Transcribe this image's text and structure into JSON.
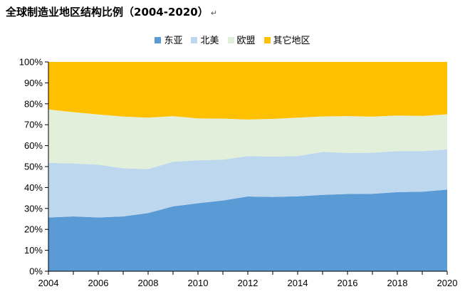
{
  "title": "全球制造业地区结构比例（2004-2020）",
  "title_mark": "↵",
  "colors": {
    "east_asia": "#5b9bd5",
    "north_america": "#bdd7ee",
    "eu": "#e2efda",
    "other": "#ffc000"
  },
  "chart_data": {
    "type": "area",
    "stacked": true,
    "title": "全球制造业地区结构比例（2004-2020）",
    "xlabel": "",
    "ylabel": "",
    "x": [
      2004,
      2005,
      2006,
      2007,
      2008,
      2009,
      2010,
      2011,
      2012,
      2013,
      2014,
      2015,
      2016,
      2017,
      2018,
      2019,
      2020
    ],
    "x_ticks": [
      "2004",
      "2006",
      "2008",
      "2010",
      "2012",
      "2014",
      "2016",
      "2018",
      "2020"
    ],
    "y_ticks": [
      "0%",
      "10%",
      "20%",
      "30%",
      "40%",
      "50%",
      "60%",
      "70%",
      "80%",
      "90%",
      "100%"
    ],
    "ylim": [
      0,
      100
    ],
    "legend_position": "top",
    "series": [
      {
        "name": "东亚",
        "color": "#5b9bd5",
        "values": [
          25.7,
          26.2,
          25.7,
          26.2,
          27.8,
          31.0,
          32.5,
          33.8,
          35.7,
          35.5,
          35.8,
          36.5,
          36.9,
          37.0,
          37.8,
          38.0,
          39.0
        ]
      },
      {
        "name": "北美",
        "color": "#bdd7ee",
        "values": [
          26.1,
          25.3,
          25.2,
          23.0,
          21.0,
          21.3,
          20.5,
          19.5,
          19.3,
          19.3,
          19.2,
          20.5,
          19.6,
          19.6,
          19.6,
          19.4,
          19.2
        ]
      },
      {
        "name": "欧盟",
        "color": "#e2efda",
        "values": [
          25.5,
          24.5,
          24.0,
          24.7,
          24.6,
          21.8,
          20.0,
          19.6,
          17.5,
          18.0,
          18.4,
          17.0,
          17.6,
          17.3,
          17.0,
          16.8,
          16.8
        ]
      },
      {
        "name": "其它地区",
        "color": "#ffc000",
        "values": [
          22.7,
          24.0,
          25.1,
          26.1,
          26.6,
          25.9,
          27.0,
          27.1,
          27.5,
          27.2,
          26.6,
          26.0,
          25.9,
          26.1,
          25.6,
          25.8,
          25.0
        ]
      }
    ]
  }
}
